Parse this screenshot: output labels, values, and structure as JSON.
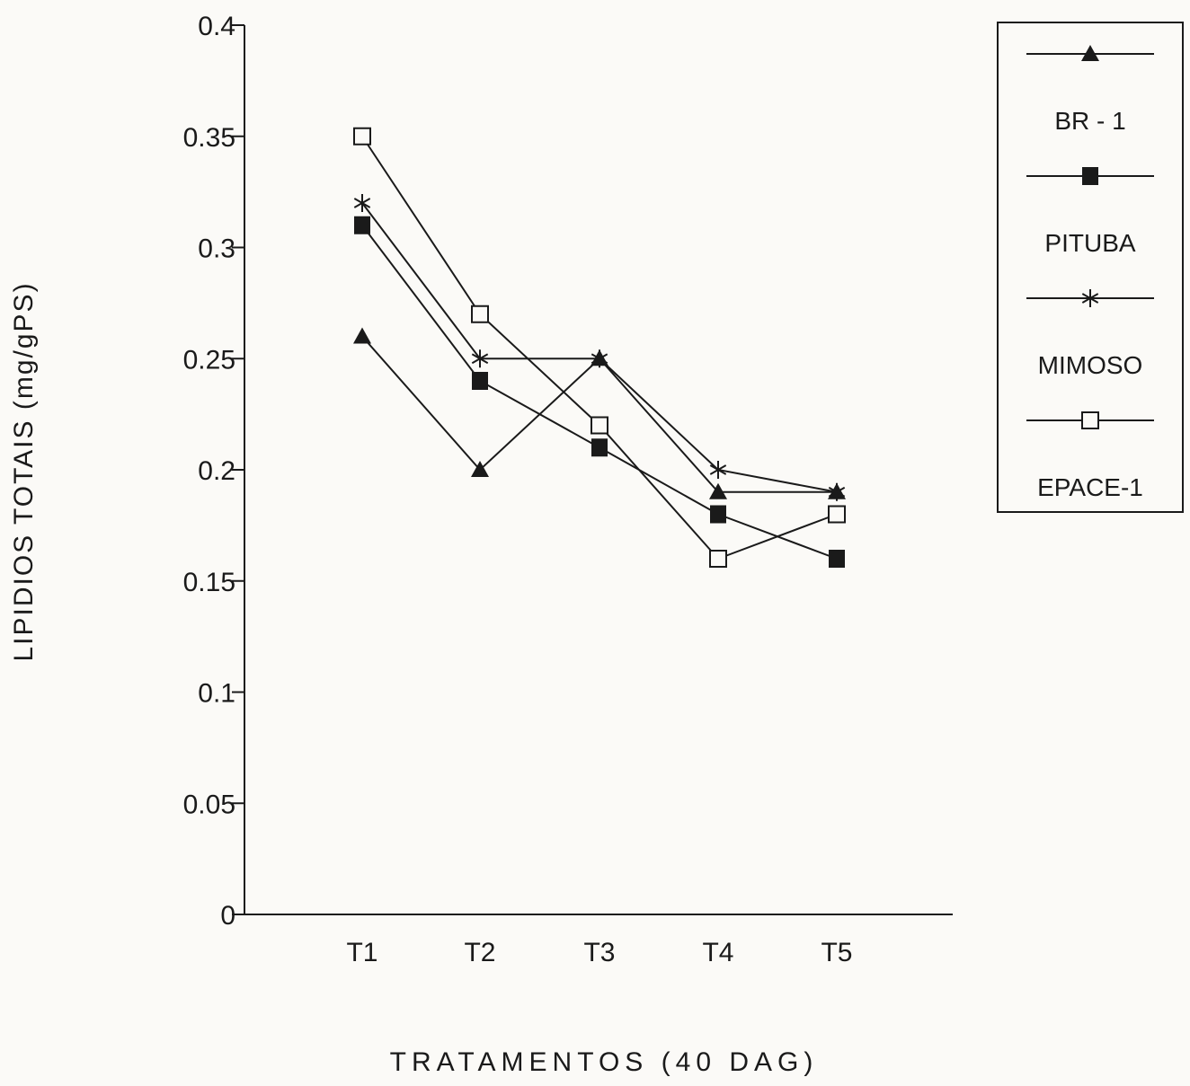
{
  "chart_data": {
    "type": "line",
    "title": "",
    "xlabel": "TRATAMENTOS    (40 DAG)",
    "ylabel": "LIPIDIOS TOTAIS (mg/gPS)",
    "categories": [
      "T1",
      "T2",
      "T3",
      "T4",
      "T5"
    ],
    "y_ticks": [
      "0",
      "0.05",
      "0.1",
      "0.15",
      "0.2",
      "0.25",
      "0.3",
      "0.35",
      "0.4"
    ],
    "ylim": [
      0,
      0.4
    ],
    "grid": false,
    "legend_position": "right",
    "series": [
      {
        "name": "BR - 1",
        "marker": "filled-triangle",
        "values": [
          0.26,
          0.2,
          0.25,
          0.19,
          0.19
        ]
      },
      {
        "name": "PITUBA",
        "marker": "filled-square",
        "values": [
          0.31,
          0.24,
          0.21,
          0.18,
          0.16
        ]
      },
      {
        "name": "MIMOSO",
        "marker": "asterisk",
        "values": [
          0.32,
          0.25,
          0.25,
          0.2,
          0.19
        ]
      },
      {
        "name": "EPACE-1",
        "marker": "open-square",
        "values": [
          0.35,
          0.27,
          0.22,
          0.16,
          0.18
        ]
      }
    ]
  }
}
